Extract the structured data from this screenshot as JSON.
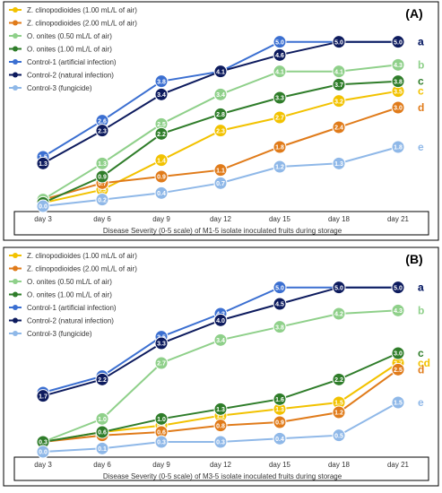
{
  "figure": {
    "background": "#ffffff",
    "frame_color": "#000000"
  },
  "chart_data": [
    {
      "type": "line",
      "panel_label": "(A)",
      "xlabel": "Disease Severity (0-5 scale) of M1-5 isolate inoculated fruits during storage",
      "ylabel": "",
      "categories": [
        "day 3",
        "day 6",
        "day 9",
        "day 12",
        "day 15",
        "day 18",
        "day 21"
      ],
      "ylim": [
        0,
        5.4
      ],
      "grid": false,
      "legend_position": "top-left",
      "series": [
        {
          "name": "Z. clinopodioides (1.00 mL/L of air)",
          "color": "#f2c200",
          "values": [
            0.1,
            0.5,
            1.4,
            2.3,
            2.7,
            3.2,
            3.5
          ],
          "letter": "c"
        },
        {
          "name": "Z. clinopodioides (2.00 mL/L of air)",
          "color": "#e07b1a",
          "values": [
            0.2,
            0.7,
            0.9,
            1.1,
            1.8,
            2.4,
            3.0
          ],
          "letter": "d"
        },
        {
          "name": "O. onites (0.50 mL/L of air)",
          "color": "#8fd08a",
          "values": [
            0.2,
            1.3,
            2.5,
            3.4,
            4.1,
            4.1,
            4.3
          ],
          "letter": "b"
        },
        {
          "name": "O. onites (1.00 mL/L of air)",
          "color": "#2f7d2a",
          "values": [
            0.1,
            0.9,
            2.2,
            2.8,
            3.3,
            3.7,
            3.8
          ],
          "letter": "c"
        },
        {
          "name": "Control-1 (artificial infection)",
          "color": "#3b6fd1",
          "values": [
            1.5,
            2.6,
            3.8,
            4.1,
            5.0,
            5.0,
            5.0
          ],
          "letter": "a"
        },
        {
          "name": "Control-2 (natural infection)",
          "color": "#0d1b5e",
          "values": [
            1.3,
            2.3,
            3.4,
            4.1,
            4.6,
            5.0,
            5.0
          ],
          "letter": "a"
        },
        {
          "name": "Control-3 (fungicide)",
          "color": "#8fb8e8",
          "values": [
            0.0,
            0.2,
            0.4,
            0.7,
            1.2,
            1.3,
            1.8
          ],
          "letter": "e"
        }
      ]
    },
    {
      "type": "line",
      "panel_label": "(B)",
      "xlabel": "Disease Severity (0-5 scale) of M3-5 isolate inoculated fruits during storage",
      "ylabel": "",
      "categories": [
        "day 3",
        "day 6",
        "day 9",
        "day 12",
        "day 15",
        "day 18",
        "day 21"
      ],
      "ylim": [
        0,
        5.4
      ],
      "grid": false,
      "legend_position": "top-left",
      "series": [
        {
          "name": "Z. clinopodioides (1.00 mL/L of air)",
          "color": "#f2c200",
          "values": [
            0.3,
            0.6,
            0.8,
            1.1,
            1.3,
            1.5,
            2.7
          ],
          "letter": "cd"
        },
        {
          "name": "Z. clinopodioides (2.00 mL/L of air)",
          "color": "#e07b1a",
          "values": [
            0.3,
            0.5,
            0.6,
            0.8,
            0.9,
            1.2,
            2.5
          ],
          "letter": "d"
        },
        {
          "name": "O. onites (0.50 mL/L of air)",
          "color": "#8fd08a",
          "values": [
            0.3,
            1.0,
            2.7,
            3.4,
            3.8,
            4.2,
            4.3
          ],
          "letter": "b"
        },
        {
          "name": "O. onites (1.00 mL/L of air)",
          "color": "#2f7d2a",
          "values": [
            0.3,
            0.6,
            1.0,
            1.3,
            1.6,
            2.2,
            3.0
          ],
          "letter": "c"
        },
        {
          "name": "Control-1 (artificial infection)",
          "color": "#3b6fd1",
          "values": [
            1.8,
            2.3,
            3.5,
            4.2,
            5.0,
            5.0,
            5.0
          ],
          "letter": "a"
        },
        {
          "name": "Control-2 (natural infection)",
          "color": "#0d1b5e",
          "values": [
            1.7,
            2.2,
            3.3,
            4.0,
            4.5,
            5.0,
            5.0
          ],
          "letter": "a"
        },
        {
          "name": "Control-3 (fungicide)",
          "color": "#8fb8e8",
          "values": [
            0.0,
            0.1,
            0.3,
            0.3,
            0.4,
            0.5,
            1.5
          ],
          "letter": "e"
        }
      ]
    }
  ]
}
